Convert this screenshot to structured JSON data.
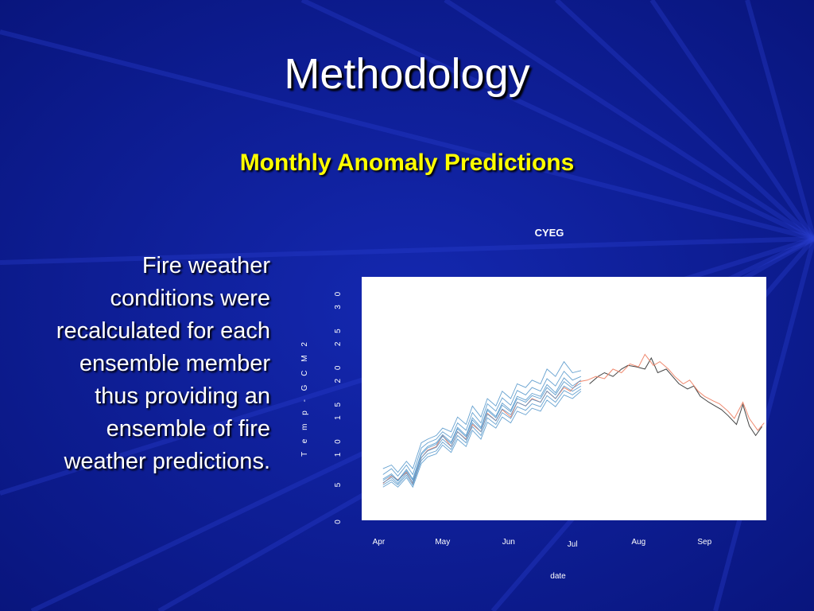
{
  "slide": {
    "title": "Methodology",
    "subtitle": "Monthly Anomaly Predictions",
    "body": "Fire weather conditions were recalculated for each ensemble member thus providing an ensemble of fire weather predictions."
  },
  "colors": {
    "background": "#0a1a8e",
    "title": "#ffffff",
    "subtitle": "#ffff00",
    "plot_background": "#ffffff",
    "observed_line": "#444444",
    "reference_line": "#f08a70",
    "ensemble_line": "#4a90c8"
  },
  "chart_data": {
    "type": "line",
    "title": "CYEG",
    "xlabel": "date",
    "ylabel": "T e m p - G C M 2",
    "x_ticks": [
      "Apr",
      "May",
      "Jun",
      "Jul",
      "Aug",
      "Sep"
    ],
    "y_ticks": [
      "0",
      "5",
      "10",
      "15",
      "20",
      "25",
      "30"
    ],
    "xlim": [
      "2000-03-24",
      "2000-09-30"
    ],
    "ylim": [
      0,
      33
    ],
    "grid": false,
    "series": [
      {
        "style": "observed",
        "color": "#444444",
        "x": [
          "2000-07-09",
          "2000-07-13",
          "2000-07-16",
          "2000-07-20",
          "2000-07-24",
          "2000-07-27",
          "2000-07-31",
          "2000-08-04",
          "2000-08-07",
          "2000-08-10",
          "2000-08-14",
          "2000-08-17",
          "2000-08-20",
          "2000-08-24",
          "2000-08-27",
          "2000-08-30",
          "2000-09-03",
          "2000-09-06",
          "2000-09-09",
          "2000-09-12",
          "2000-09-16",
          "2000-09-19",
          "2000-09-22",
          "2000-09-25",
          "2000-09-28"
        ],
        "y": [
          18.5,
          19.5,
          20,
          19.5,
          20.5,
          21,
          20.8,
          20.5,
          22,
          20,
          20.5,
          19.5,
          18.5,
          17.8,
          18.2,
          16.8,
          16,
          15.5,
          15,
          14.2,
          13,
          15.7,
          12.8,
          11.5,
          12.7
        ]
      },
      {
        "style": "reference",
        "color": "#f08a70",
        "x": [
          "2000-04-03",
          "2000-04-07",
          "2000-04-10",
          "2000-04-14",
          "2000-04-17",
          "2000-04-21",
          "2000-04-24",
          "2000-04-28",
          "2000-05-01",
          "2000-05-05",
          "2000-05-08",
          "2000-05-12",
          "2000-05-15",
          "2000-05-19",
          "2000-05-22",
          "2000-05-26",
          "2000-05-29",
          "2000-06-02",
          "2000-06-05",
          "2000-06-09",
          "2000-06-12",
          "2000-06-16",
          "2000-06-19",
          "2000-06-23",
          "2000-06-27",
          "2000-06-30",
          "2000-07-04",
          "2000-07-08",
          "2000-07-12",
          "2000-07-16",
          "2000-07-20",
          "2000-07-24",
          "2000-07-28",
          "2000-08-01",
          "2000-08-04",
          "2000-08-08",
          "2000-08-11",
          "2000-08-15",
          "2000-08-18",
          "2000-08-22",
          "2000-08-25",
          "2000-08-29",
          "2000-09-01",
          "2000-09-05",
          "2000-09-08",
          "2000-09-12",
          "2000-09-15",
          "2000-09-19",
          "2000-09-22",
          "2000-09-26",
          "2000-09-29"
        ],
        "y": [
          5,
          6,
          5.5,
          6.5,
          5,
          8.5,
          9.5,
          10,
          11.5,
          10,
          12,
          11,
          13,
          12,
          14.5,
          13.5,
          15,
          14,
          16,
          15.5,
          16.5,
          16,
          17.5,
          16.5,
          18,
          17.5,
          18.8,
          19,
          19.5,
          19.2,
          20.5,
          20,
          21.2,
          20.8,
          22.5,
          21,
          21.5,
          20.5,
          19.5,
          18.5,
          19,
          17.5,
          16.8,
          16.2,
          15.8,
          14.8,
          13.8,
          16,
          13.8,
          12.2,
          13.2
        ]
      },
      {
        "style": "ensemble",
        "color": "#4a90c8",
        "offset": 1.6,
        "y": [
          7,
          7.5,
          6.5,
          8,
          7,
          10.5,
          11,
          11.5,
          12.5,
          12,
          14,
          13,
          15.5,
          14,
          16.5,
          15.5,
          17.5,
          16.5,
          18.5,
          18,
          19,
          18.5,
          20.5,
          19.5,
          21.5,
          20,
          20.3
        ]
      },
      {
        "style": "ensemble",
        "color": "#4a90c8",
        "offset": 1.0,
        "y": [
          6.2,
          7,
          6,
          7.5,
          6.2,
          9.8,
          10.5,
          11,
          12,
          11.2,
          13.2,
          12.2,
          14.6,
          13.2,
          15.8,
          14.8,
          16.6,
          15.6,
          17.6,
          17,
          18,
          17.5,
          19.2,
          18.2,
          20.2,
          19,
          19.5
        ]
      },
      {
        "style": "ensemble",
        "color": "#4a90c8",
        "offset": 0.5,
        "y": [
          5.6,
          6.3,
          5.4,
          6.9,
          5.6,
          9.1,
          10,
          10.5,
          11.6,
          10.6,
          12.6,
          11.5,
          13.9,
          12.6,
          15.1,
          14.1,
          15.9,
          14.9,
          16.8,
          16.3,
          17.2,
          16.8,
          18.4,
          17.3,
          19.3,
          18.2,
          19
        ]
      },
      {
        "style": "ensemble",
        "color": "#4a90c8",
        "offset": 0.0,
        "y": [
          5.4,
          6.1,
          5.3,
          6.7,
          5.4,
          8.9,
          9.8,
          10.3,
          11.4,
          10.4,
          12.4,
          11.3,
          13.6,
          12.4,
          14.9,
          13.9,
          15.6,
          14.7,
          16.5,
          16,
          16.9,
          16.5,
          18,
          17,
          18.8,
          17.9,
          18.6
        ]
      },
      {
        "style": "ensemble",
        "color": "#4a90c8",
        "offset": -0.6,
        "y": [
          5.1,
          5.8,
          5,
          6.4,
          5.1,
          8.5,
          9.4,
          9.9,
          11,
          10,
          12,
          10.9,
          13.2,
          12,
          14.4,
          13.5,
          15.1,
          14.3,
          16,
          15.5,
          16.4,
          16,
          17.5,
          16.5,
          18.2,
          17.5,
          18.2
        ]
      },
      {
        "style": "ensemble",
        "color": "#4a90c8",
        "offset": -1.2,
        "y": [
          4.8,
          5.5,
          4.8,
          6.1,
          4.8,
          8.1,
          9,
          9.4,
          10.6,
          9.6,
          11.5,
          10.5,
          12.7,
          11.5,
          13.9,
          13,
          14.6,
          13.8,
          15.4,
          14.9,
          15.8,
          15.4,
          16.9,
          16,
          17.6,
          17,
          17.8
        ]
      },
      {
        "style": "ensemble",
        "color": "#4a90c8",
        "offset": -1.8,
        "y": [
          4.5,
          5.2,
          4.5,
          5.8,
          4.5,
          7.7,
          8.6,
          9,
          10.2,
          9.2,
          11,
          10,
          12.2,
          11,
          13.3,
          12.5,
          14,
          13.2,
          14.8,
          14.3,
          15.2,
          14.8,
          16.3,
          15.4,
          17,
          16.5,
          17.5
        ]
      }
    ],
    "ensemble_x": [
      "2000-04-03",
      "2000-04-07",
      "2000-04-10",
      "2000-04-14",
      "2000-04-17",
      "2000-04-21",
      "2000-04-24",
      "2000-04-28",
      "2000-05-01",
      "2000-05-05",
      "2000-05-08",
      "2000-05-12",
      "2000-05-15",
      "2000-05-19",
      "2000-05-22",
      "2000-05-26",
      "2000-05-29",
      "2000-06-02",
      "2000-06-05",
      "2000-06-09",
      "2000-06-12",
      "2000-06-16",
      "2000-06-19",
      "2000-06-23",
      "2000-06-27",
      "2000-07-01",
      "2000-07-05"
    ]
  }
}
